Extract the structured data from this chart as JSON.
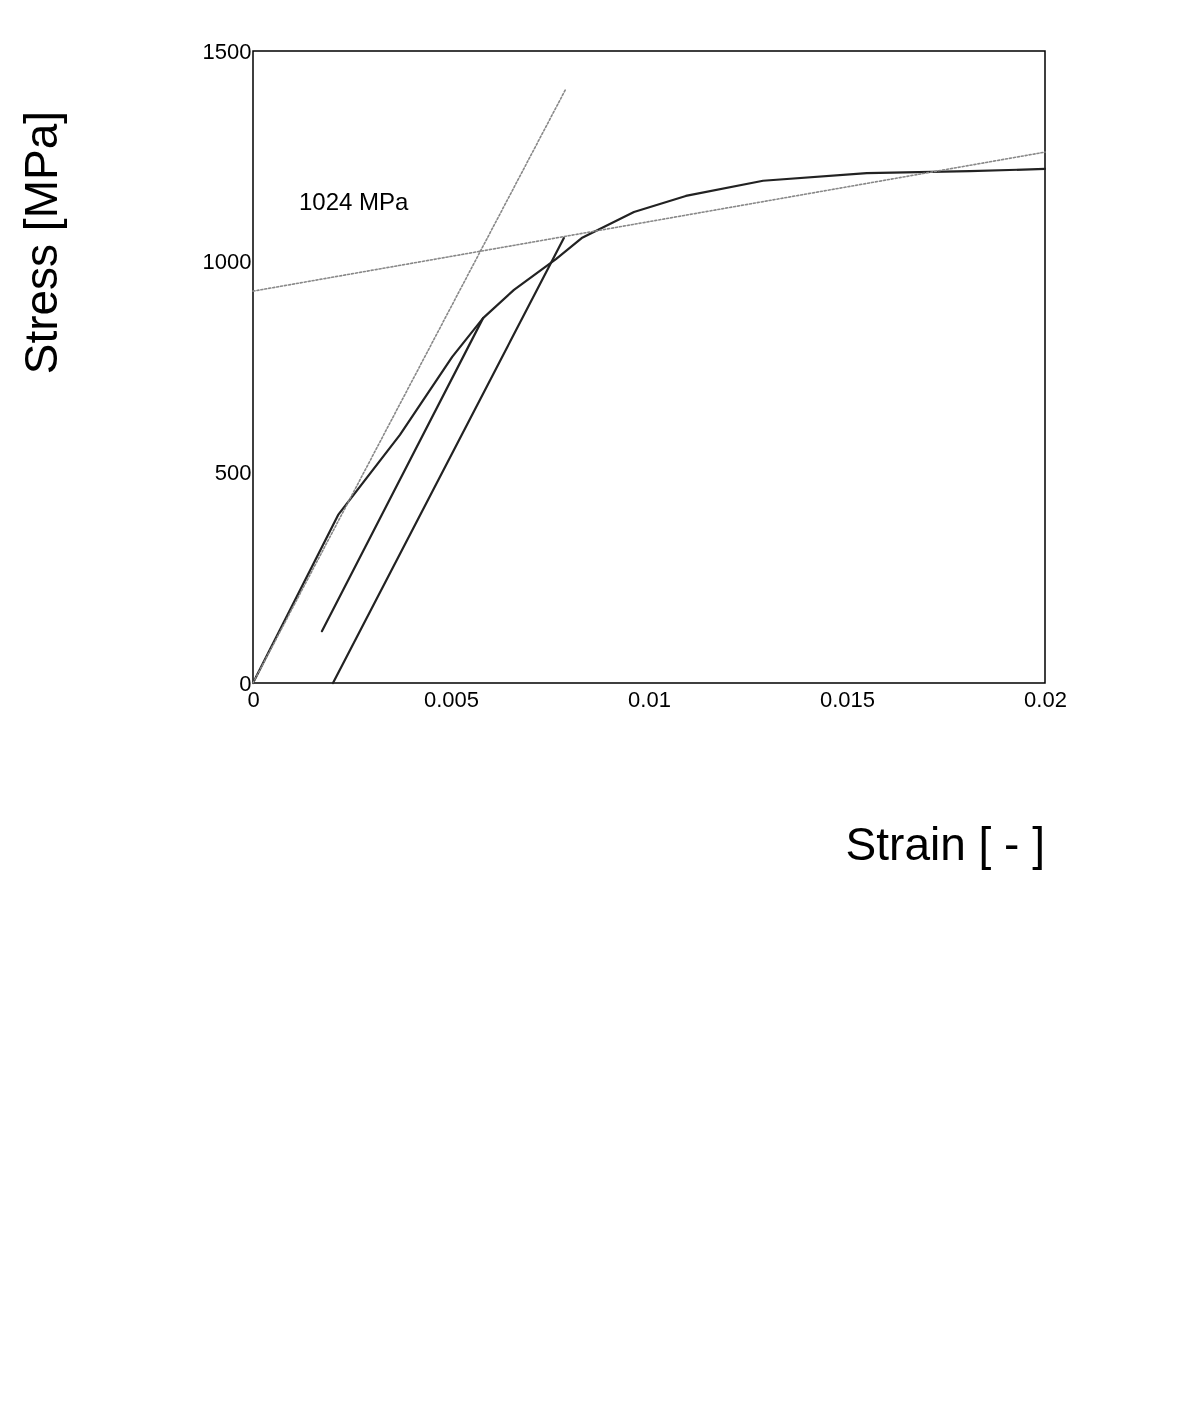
{
  "chart_data": {
    "type": "line",
    "xlabel": "Strain [ - ]",
    "ylabel": "Stress [MPa]",
    "xlim": [
      0,
      0.02
    ],
    "ylim": [
      0,
      1500
    ],
    "xticks": [
      0,
      0.005,
      0.01,
      0.015,
      0.02
    ],
    "yticks": [
      0,
      500,
      1000,
      1500
    ],
    "grid": false,
    "marker": "none",
    "annotations": [
      "1024 MPa"
    ],
    "series": [
      {
        "color": "#222222",
        "line_style": "solid",
        "x": [
          0,
          0.00215,
          0.00371,
          0.00503,
          0.00581,
          0.00659,
          0.00765,
          0.0083,
          0.00962,
          0.01093,
          0.01288,
          0.0155,
          0.0181,
          0.02
        ],
        "values": [
          0,
          399,
          589,
          774,
          866,
          933,
          1006,
          1056,
          1118,
          1156,
          1192,
          1210,
          1215,
          1220
        ]
      },
      {
        "color": "#222222",
        "line_style": "solid",
        "x": [
          0.00581,
          0.00174
        ],
        "values": [
          866,
          123
        ]
      },
      {
        "color": "#222222",
        "line_style": "solid",
        "x": [
          0.00785,
          0.00202
        ],
        "values": [
          1056,
          0
        ]
      },
      {
        "color": "#888888",
        "line_style": "dotted",
        "x": [
          0,
          0.0079
        ],
        "values": [
          0,
          1410
        ]
      },
      {
        "color": "#888888",
        "line_style": "dotted",
        "x": [
          0,
          0.02
        ],
        "values": [
          930,
          1260
        ]
      }
    ]
  }
}
